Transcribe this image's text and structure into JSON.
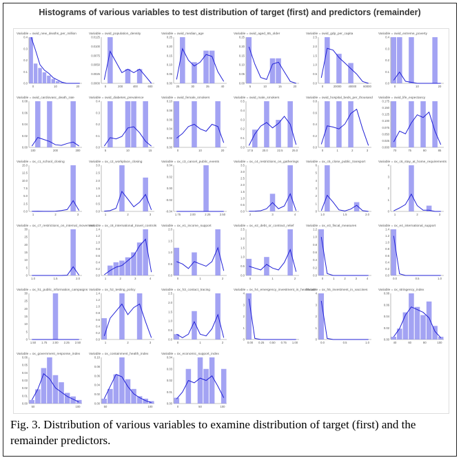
{
  "figure": {
    "title": "Histograms of various variables to test distribution of target (first) and predictors (remainder)",
    "caption": "Fig. 3. Distribution of various variables to examine distribution of target (first) and the remainder predictors."
  },
  "colors": {
    "bar": "#8c8cf0",
    "kde": "#1f1fd6",
    "axis": "#888888",
    "text": "#555555"
  },
  "chart_data": [
    {
      "type": "bar",
      "title": "Variable = owid_new_deaths_per_million",
      "xticks": [
        "0",
        "10",
        "20"
      ],
      "yticks": [
        "0.0",
        "0.1",
        "0.2",
        "0.3",
        "0.4"
      ],
      "values": [
        0.42,
        0.18,
        0.14,
        0.1,
        0.07,
        0.04,
        0.02,
        0.01,
        0,
        0,
        0,
        0
      ],
      "kde": [
        0.42,
        0.3,
        0.17,
        0.12,
        0.09,
        0.05,
        0.03,
        0.01,
        0,
        0,
        0,
        0
      ]
    },
    {
      "type": "bar",
      "title": "Variable = owid_population_density",
      "xticks": [
        "0",
        "200",
        "400",
        "600"
      ],
      "yticks": [
        "0.0000",
        "0.0025",
        "0.0050",
        "0.0075",
        "0.0100",
        "0.0125"
      ],
      "values": [
        0,
        0.013,
        0,
        0,
        0.004,
        0,
        0.004,
        0,
        0
      ],
      "kde": [
        0.001,
        0.009,
        0.006,
        0.003,
        0.004,
        0.003,
        0.004,
        0.002,
        0
      ]
    },
    {
      "type": "bar",
      "title": "Variable = owid_median_age",
      "xticks": [
        "25",
        "30",
        "35",
        "40"
      ],
      "yticks": [
        "0.00",
        "0.05",
        "0.10",
        "0.15",
        "0.20",
        "0.25"
      ],
      "values": [
        0,
        0.24,
        0,
        0.11,
        0,
        0.17,
        0.17,
        0,
        0
      ],
      "kde": [
        0.02,
        0.18,
        0.12,
        0.09,
        0.11,
        0.15,
        0.14,
        0.06,
        0.01
      ]
    },
    {
      "type": "bar",
      "title": "Variable = owid_aged_65_older",
      "xticks": [
        "5",
        "10",
        "15",
        "20"
      ],
      "yticks": [
        "0.00",
        "0.05",
        "0.10",
        "0.15",
        "0.20",
        "0.25"
      ],
      "values": [
        0.24,
        0,
        0,
        0,
        0.13,
        0.13,
        0,
        0,
        0
      ],
      "kde": [
        0.19,
        0.1,
        0.03,
        0.02,
        0.1,
        0.11,
        0.06,
        0.01,
        0
      ]
    },
    {
      "type": "bar",
      "title": "Variable = owid_gdp_per_capita",
      "xticks": [
        "0",
        "20000",
        "40000",
        "60000"
      ],
      "yticks": [
        "0.0",
        "0.5",
        "1.0",
        "1.5",
        "2.0",
        "2.5"
      ],
      "values": [
        0,
        2.5,
        0,
        1.6,
        0,
        1.1,
        0,
        0,
        0
      ],
      "kde": [
        0.3,
        1.9,
        1.8,
        1.4,
        1.1,
        0.8,
        0.5,
        0.1,
        0
      ]
    },
    {
      "type": "bar",
      "title": "Variable = owid_extreme_poverty",
      "xticks": [
        "0",
        "10",
        "20"
      ],
      "yticks": [
        "0.0",
        "0.1",
        "0.2",
        "0.3",
        "0.4"
      ],
      "values": [
        0.45,
        0.45,
        0,
        0.45,
        0,
        0,
        0,
        0.45,
        0
      ],
      "kde": [
        0.03,
        0.11,
        0.02,
        0.01,
        0,
        0,
        0,
        0,
        0
      ]
    },
    {
      "type": "bar",
      "title": "Variable = owid_cardiovasc_death_rate",
      "xticks": [
        "100",
        "200",
        "300"
      ],
      "yticks": [
        "0.00",
        "0.02",
        "0.04",
        "0.06",
        "0.08"
      ],
      "values": [
        0,
        0.07,
        0,
        0.07,
        0,
        0,
        0,
        0.07,
        0
      ],
      "kde": [
        0.002,
        0.015,
        0.012,
        0.009,
        0.004,
        0.003,
        0.006,
        0.008,
        0.002
      ]
    },
    {
      "type": "bar",
      "title": "Variable = owid_diabetes_prevalence",
      "xticks": [
        "5",
        "10",
        "15"
      ],
      "yticks": [
        "0.0",
        "0.1",
        "0.2",
        "0.3",
        "0.4"
      ],
      "values": [
        0,
        0.38,
        0,
        0,
        0.38,
        0.38,
        0,
        0.38,
        0
      ],
      "kde": [
        0.01,
        0.08,
        0.07,
        0.09,
        0.16,
        0.17,
        0.12,
        0.05,
        0.01
      ]
    },
    {
      "type": "bar",
      "title": "Variable = owid_female_smokers",
      "xticks": [
        "0",
        "10",
        "20"
      ],
      "yticks": [
        "0.00",
        "0.02",
        "0.04",
        "0.06",
        "0.08",
        "0.10"
      ],
      "values": [
        0.1,
        0,
        0,
        0.1,
        0,
        0,
        0,
        0.1,
        0
      ],
      "kde": [
        0.02,
        0.03,
        0.045,
        0.05,
        0.04,
        0.035,
        0.05,
        0.045,
        0.01
      ]
    },
    {
      "type": "bar",
      "title": "Variable = owid_male_smokers",
      "xticks": [
        "17.5",
        "20.0",
        "22.5",
        "25.0"
      ],
      "yticks": [
        "0.0",
        "0.1",
        "0.2",
        "0.3",
        "0.4",
        "0.5"
      ],
      "values": [
        0,
        0.2,
        0,
        0.52,
        0,
        0.31,
        0,
        0.52,
        0
      ],
      "kde": [
        0.02,
        0.15,
        0.24,
        0.28,
        0.22,
        0.27,
        0.35,
        0.26,
        0.03
      ]
    },
    {
      "type": "bar",
      "title": "Variable = owid_hospital_beds_per_thousand",
      "xticks": [
        "0",
        "1",
        "2",
        "3"
      ],
      "yticks": [
        "0.0",
        "0.2",
        "0.4",
        "0.6",
        "0.8"
      ],
      "values": [
        0,
        0.75,
        0,
        0.75,
        0,
        0.75,
        0,
        0,
        0
      ],
      "kde": [
        0.05,
        0.35,
        0.33,
        0.3,
        0.38,
        0.55,
        0.62,
        0.3,
        0.03
      ]
    },
    {
      "type": "bar",
      "title": "Variable = owid_life_expectancy",
      "xticks": [
        "70",
        "75",
        "80",
        "85"
      ],
      "yticks": [
        "0.000",
        "0.025",
        "0.050",
        "0.075",
        "0.100",
        "0.125",
        "0.150",
        "0.175"
      ],
      "values": [
        0.17,
        0,
        0,
        0.17,
        0,
        0.17,
        0,
        0.17,
        0
      ],
      "kde": [
        0.02,
        0.06,
        0.05,
        0.09,
        0.12,
        0.11,
        0.13,
        0.06,
        0.01
      ]
    },
    {
      "type": "bar",
      "title": "Variable = ox_c1_school_closing",
      "xticks": [
        "1",
        "2",
        "3"
      ],
      "yticks": [
        "0.0",
        "2.5",
        "5.0",
        "7.5",
        "10.0",
        "12.5",
        "15.0"
      ],
      "values": [
        0,
        0,
        0,
        0,
        0,
        0,
        0,
        15,
        0
      ],
      "kde": [
        0.02,
        0.05,
        0.03,
        0.03,
        0.05,
        0.3,
        0.6,
        3.5,
        0.3
      ]
    },
    {
      "type": "bar",
      "title": "Variable = ox_c2_workplace_closing",
      "xticks": [
        "1",
        "2",
        "3"
      ],
      "yticks": [
        "0.0",
        "0.5",
        "1.0",
        "1.5",
        "2.0",
        "2.5",
        "3.0"
      ],
      "values": [
        0,
        0,
        0,
        3.0,
        0,
        0,
        0,
        2.2,
        0
      ],
      "kde": [
        0.02,
        0.05,
        0.2,
        1.3,
        0.8,
        0.3,
        0.6,
        1.1,
        0.1
      ]
    },
    {
      "type": "bar",
      "title": "Variable = ox_c3_cancel_public_events",
      "xticks": [
        "1.75",
        "2.00",
        "2.25",
        "2.50"
      ],
      "yticks": [
        "-0.04",
        "-0.02",
        "0.00",
        "0.02",
        "0.04"
      ],
      "values": [
        0,
        0,
        0,
        0,
        0,
        0.045,
        0,
        0,
        0
      ],
      "kde": [
        0,
        0,
        0,
        0,
        0,
        0,
        0,
        0,
        0
      ]
    },
    {
      "type": "bar",
      "title": "Variable = ox_c4_restrictions_on_gatherings",
      "xticks": [
        "2",
        "3",
        "4"
      ],
      "yticks": [
        "0.0",
        "0.5",
        "1.0",
        "1.5",
        "2.0",
        "2.5",
        "3.0",
        "3.5"
      ],
      "values": [
        0,
        0,
        0,
        0,
        1.3,
        0,
        0,
        3.4,
        0
      ],
      "kde": [
        0.01,
        0.02,
        0.05,
        0.2,
        0.65,
        0.2,
        0.4,
        1.3,
        0.05
      ]
    },
    {
      "type": "bar",
      "title": "Variable = ox_c5_close_public_transport",
      "xticks": [
        "1.0",
        "1.5",
        "2.0"
      ],
      "yticks": [
        "0",
        "1",
        "2",
        "3",
        "4",
        "5",
        "6"
      ],
      "values": [
        0,
        6,
        0,
        0,
        0,
        0,
        1.2,
        0,
        0
      ],
      "kde": [
        0.1,
        2.1,
        1.2,
        0.2,
        0.05,
        0.3,
        0.8,
        0.1,
        0
      ]
    },
    {
      "type": "bar",
      "title": "Variable = ox_c6_stay_at_home_requirements",
      "xticks": [
        "1",
        "2",
        "3"
      ],
      "yticks": [
        "0",
        "1",
        "2",
        "3",
        "4"
      ],
      "values": [
        0,
        0,
        0,
        4,
        0,
        0,
        0.5,
        0,
        0
      ],
      "kde": [
        0.05,
        0.3,
        0.6,
        1.5,
        0.5,
        0.1,
        0.1,
        0,
        0
      ]
    },
    {
      "type": "bar",
      "title": "Variable = ox_c7_restrictions_on_internal_movement",
      "xticks": [
        "1.0",
        "1.5",
        "2.0"
      ],
      "yticks": [
        "0",
        "5",
        "10",
        "15",
        "20",
        "25",
        "30"
      ],
      "values": [
        0,
        0,
        0,
        0,
        0,
        0,
        0,
        32,
        0
      ],
      "kde": [
        0,
        0,
        0,
        0,
        0,
        0,
        0.2,
        6,
        0.2
      ]
    },
    {
      "type": "bar",
      "title": "Variable = ox_c8_international_travel_controls",
      "xticks": [
        "1",
        "2",
        "3",
        "4"
      ],
      "yticks": [
        "0.0",
        "0.2",
        "0.4",
        "0.6",
        "0.8",
        "1.0",
        "1.2",
        "1.4"
      ],
      "values": [
        0,
        0.3,
        0.4,
        0.45,
        0.55,
        0.7,
        1.0,
        1.4,
        0
      ],
      "kde": [
        0.02,
        0.15,
        0.25,
        0.3,
        0.45,
        0.6,
        0.9,
        1.1,
        0.1
      ]
    },
    {
      "type": "bar",
      "title": "Variable = ox_e1_income_support",
      "xticks": [
        "0",
        "1",
        "2"
      ],
      "yticks": [
        "0.0",
        "0.5",
        "1.0",
        "1.5",
        "2.0"
      ],
      "values": [
        1.2,
        0,
        0,
        1.0,
        0,
        0,
        0,
        2.0,
        0
      ],
      "kde": [
        0.6,
        0.5,
        0.3,
        0.6,
        0.5,
        0.4,
        0.6,
        1.2,
        0.2
      ]
    },
    {
      "type": "bar",
      "title": "Variable = ox_e2_debt_or_contract_relief",
      "xticks": [
        "0",
        "1",
        "2"
      ],
      "yticks": [
        "0.0",
        "0.5",
        "1.0",
        "1.5",
        "2.0",
        "2.5"
      ],
      "values": [
        0.9,
        0,
        0,
        1.0,
        0,
        0,
        0,
        2.5,
        0
      ],
      "kde": [
        0.5,
        0.4,
        0.3,
        0.6,
        0.4,
        0.3,
        0.7,
        1.4,
        0.2
      ]
    },
    {
      "type": "bar",
      "title": "Variable = ox_e3_fiscal_measures",
      "xticks": [
        "0",
        "1",
        "2",
        "3",
        "4"
      ],
      "yticks": [
        "0.0",
        "0.2",
        "0.4",
        "0.6",
        "0.8",
        "1.0",
        "1.2"
      ],
      "values": [
        1.2,
        0,
        0,
        0,
        0,
        0,
        0,
        0,
        0
      ],
      "kde": [
        1.0,
        0.05,
        0,
        0,
        0,
        0,
        0,
        0,
        0
      ]
    },
    {
      "type": "bar",
      "title": "Variable = ox_e4_international_support",
      "xticks": [
        "0.0",
        "0.5",
        "1.0"
      ],
      "yticks": [
        "0.0",
        "0.2",
        "0.4",
        "0.6",
        "0.8",
        "1.0",
        "1.2",
        "1.4"
      ],
      "values": [
        1.4,
        0,
        0,
        0,
        0,
        0,
        0,
        0,
        0
      ],
      "kde": [
        1.2,
        0.05,
        0,
        0,
        0,
        0,
        0,
        0,
        0
      ]
    },
    {
      "type": "bar",
      "title": "Variable = ox_h1_public_information_campaigns",
      "xticks": [
        "1.50",
        "1.75",
        "2.00",
        "2.25",
        "2.50"
      ],
      "yticks": [
        "0",
        "5",
        "10",
        "15",
        "20",
        "25",
        "30"
      ],
      "values": [
        0,
        0,
        0,
        0,
        32,
        0,
        0,
        0,
        0
      ],
      "kde": [
        0,
        0,
        0,
        0,
        0,
        0,
        0,
        0,
        0
      ]
    },
    {
      "type": "bar",
      "title": "Variable = ox_h2_testing_policy",
      "xticks": [
        "1",
        "2",
        "3"
      ],
      "yticks": [
        "0.0",
        "0.2",
        "0.4",
        "0.6",
        "0.8",
        "1.0",
        "1.2",
        "1.4"
      ],
      "values": [
        0.6,
        0,
        0,
        1.3,
        0,
        0,
        1.3,
        0,
        0
      ],
      "kde": [
        0.1,
        0.6,
        0.8,
        1.0,
        0.7,
        0.9,
        1.0,
        0.5,
        0.05
      ]
    },
    {
      "type": "bar",
      "title": "Variable = ox_h3_contact_tracing",
      "xticks": [
        "0",
        "1",
        "2"
      ],
      "yticks": [
        "0.0",
        "0.5",
        "1.0",
        "1.5",
        "2.0",
        "2.5"
      ],
      "values": [
        0.3,
        0,
        0,
        1.6,
        0,
        0,
        0,
        2.6,
        0
      ],
      "kde": [
        0.3,
        0.1,
        0.3,
        1.0,
        0.3,
        0.2,
        0.6,
        1.4,
        0.1
      ]
    },
    {
      "type": "bar",
      "title": "Variable = ox_h4_emergency_investment_in_healthcare",
      "xticks": [
        "0.00",
        "0.25",
        "0.50",
        "0.75",
        "1.00"
      ],
      "yticks": [
        "0",
        "1",
        "2",
        "3",
        "4"
      ],
      "values": [
        4.3,
        0,
        0,
        0,
        0,
        0,
        0,
        0,
        0
      ],
      "kde": [
        3.8,
        0.1,
        0,
        0,
        0,
        0,
        0,
        0,
        0
      ]
    },
    {
      "type": "bar",
      "title": "Variable = ox_h5_investment_in_vaccines",
      "xticks": [
        "0.0",
        "0.5",
        "1.0"
      ],
      "yticks": [
        "0",
        "1",
        "2",
        "3",
        "4"
      ],
      "values": [
        4.3,
        0,
        0,
        0,
        0,
        0,
        0,
        0,
        0
      ],
      "kde": [
        3.6,
        0.1,
        0,
        0,
        0,
        0,
        0,
        0,
        0
      ]
    },
    {
      "type": "bar",
      "title": "Variable = ox_stringency_index",
      "xticks": [
        "40",
        "60",
        "80",
        "100"
      ],
      "yticks": [
        "0.00",
        "0.02",
        "0.04",
        "0.06",
        "0.08"
      ],
      "values": [
        0.005,
        0.02,
        0.05,
        0.085,
        0.06,
        0.045,
        0.07,
        0.025,
        0.005
      ],
      "kde": [
        0.005,
        0.02,
        0.045,
        0.06,
        0.055,
        0.05,
        0.04,
        0.015,
        0.003
      ]
    },
    {
      "type": "bar",
      "title": "Variable = ox_government_response_index",
      "xticks": [
        "50",
        "100"
      ],
      "yticks": [
        "0.00",
        "0.01",
        "0.02",
        "0.03",
        "0.04",
        "0.05",
        "0.06"
      ],
      "values": [
        0.005,
        0.02,
        0.05,
        0.065,
        0.04,
        0.03,
        0.015,
        0.01,
        0.005
      ],
      "kde": [
        0.005,
        0.02,
        0.042,
        0.035,
        0.022,
        0.016,
        0.01,
        0.006,
        0.002
      ]
    },
    {
      "type": "bar",
      "title": "Variable = ox_containment_health_index",
      "xticks": [
        "50",
        "100"
      ],
      "yticks": [
        "0.00",
        "0.02",
        "0.04",
        "0.06",
        "0.08",
        "0.10"
      ],
      "values": [
        0.01,
        0.03,
        0.06,
        0.095,
        0.05,
        0.03,
        0.015,
        0.01,
        0.005
      ],
      "kde": [
        0.01,
        0.035,
        0.06,
        0.055,
        0.035,
        0.02,
        0.012,
        0.006,
        0.002
      ]
    },
    {
      "type": "bar",
      "title": "Variable = ox_economic_support_index",
      "xticks": [
        "0",
        "50",
        "100"
      ],
      "yticks": [
        "0.00",
        "0.01",
        "0.02",
        "0.03",
        "0.04"
      ],
      "values": [
        0.005,
        0,
        0.03,
        0,
        0.04,
        0.03,
        0.04,
        0,
        0.03
      ],
      "kde": [
        0.004,
        0.01,
        0.02,
        0.018,
        0.022,
        0.02,
        0.024,
        0.015,
        0.005
      ]
    }
  ]
}
